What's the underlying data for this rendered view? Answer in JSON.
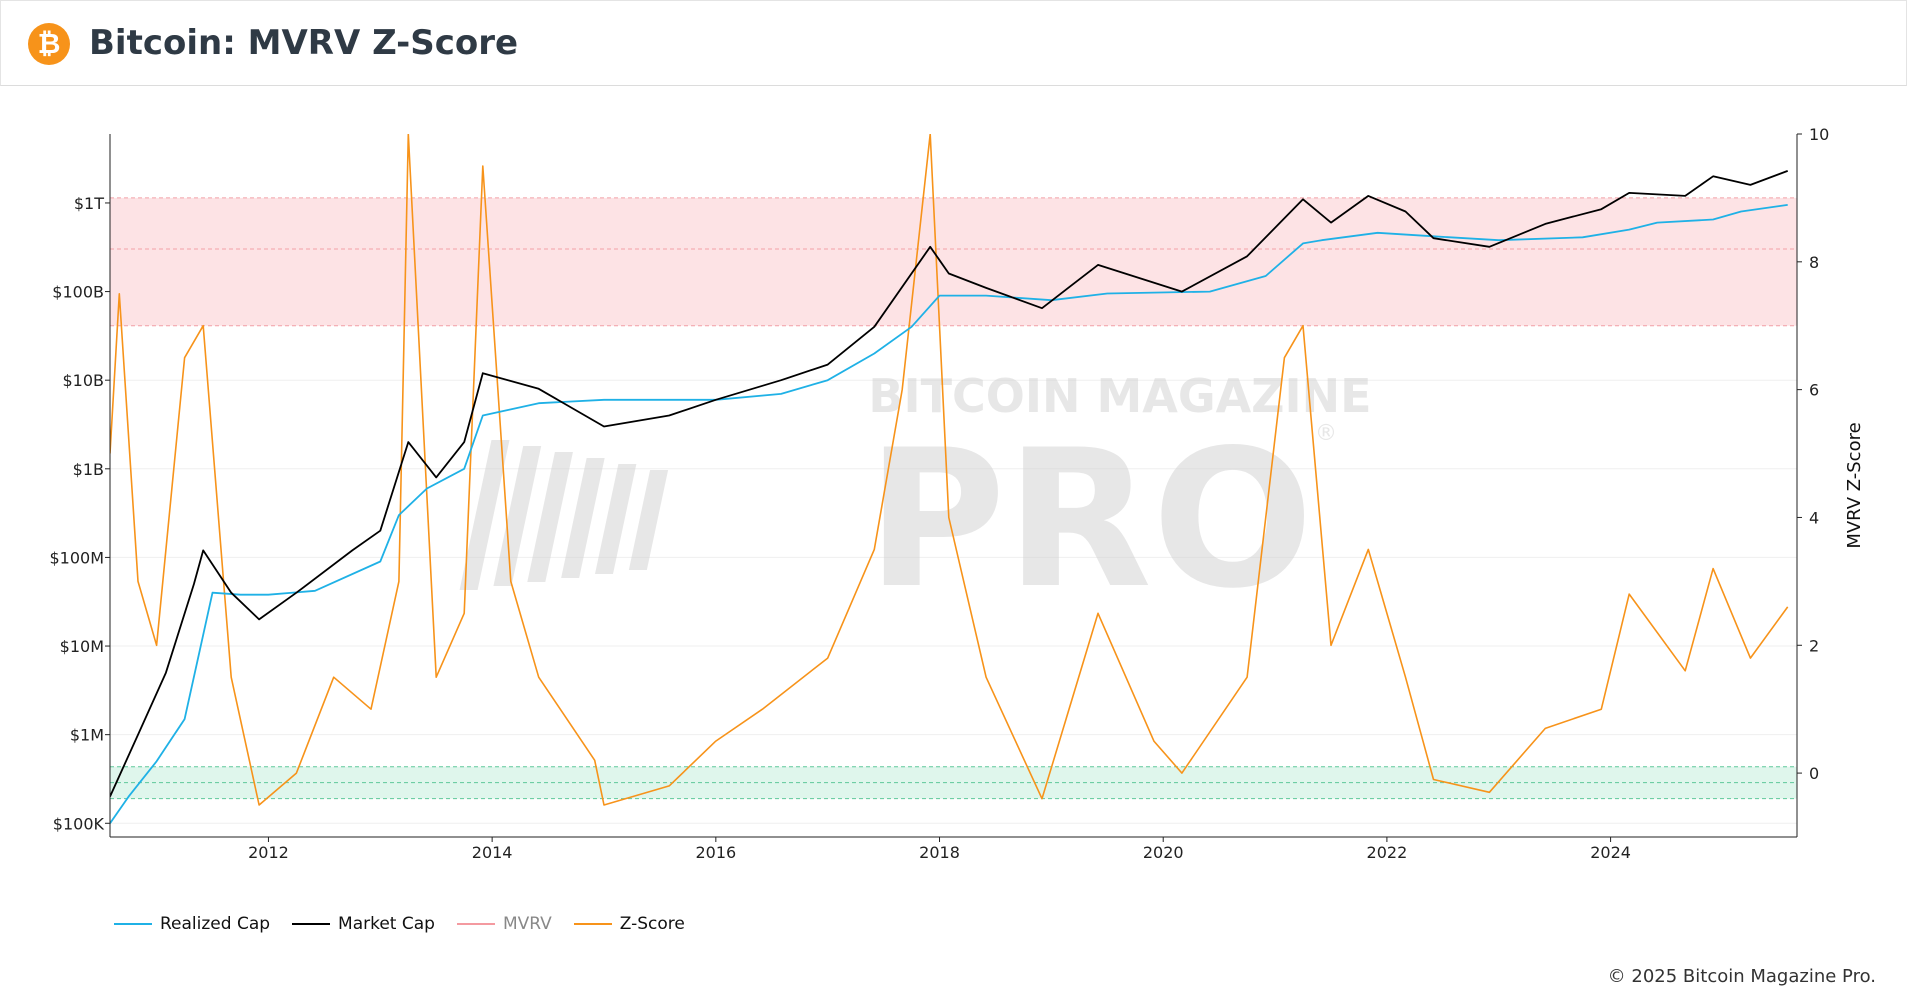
{
  "header": {
    "logo_glyph": "₿",
    "title": "Bitcoin: MVRV Z-Score"
  },
  "watermark": {
    "top_text": "BITCOIN MAGAZINE",
    "main_text": "PRO",
    "registered": "®"
  },
  "legend": [
    {
      "label": "Realized Cap",
      "color": "#1fb1e6",
      "muted": false
    },
    {
      "label": "Market Cap",
      "color": "#000000",
      "muted": false
    },
    {
      "label": "MVRV",
      "color": "#f49aa0",
      "muted": true
    },
    {
      "label": "Z-Score",
      "color": "#f7931a",
      "muted": false
    }
  ],
  "copyright": "© 2025 Bitcoin Magazine Pro.",
  "chart_data": {
    "type": "line",
    "x_range": [
      "2010-08",
      "2025-09"
    ],
    "x_ticks": [
      "2012",
      "2014",
      "2016",
      "2018",
      "2020",
      "2022",
      "2024"
    ],
    "y_left": {
      "scale": "log",
      "ticks": [
        "$100K",
        "$1M",
        "$10M",
        "$100M",
        "$1B",
        "$10B",
        "$100B",
        "$1T"
      ],
      "range_usd": [
        70000,
        6000000000000
      ]
    },
    "y_right": {
      "label": "MVRV Z-Score",
      "ticks": [
        "0",
        "2",
        "4",
        "6",
        "8",
        "10"
      ],
      "range": [
        -1,
        10
      ]
    },
    "zones": {
      "overvalued_z": [
        7,
        9
      ],
      "undervalued_z": [
        -0.4,
        0.1
      ],
      "overvalued_color": "#fde3e5",
      "undervalued_color": "#dff6ec"
    },
    "series": [
      {
        "name": "Realized Cap",
        "color": "#1fb1e6",
        "points": [
          [
            "2010-08",
            100000.0
          ],
          [
            "2010-10",
            200000.0
          ],
          [
            "2011-01",
            500000.0
          ],
          [
            "2011-04",
            1500000.0
          ],
          [
            "2011-07",
            40000000.0
          ],
          [
            "2011-10",
            38000000.0
          ],
          [
            "2012-01",
            38000000.0
          ],
          [
            "2012-06",
            42000000.0
          ],
          [
            "2013-01",
            90000000.0
          ],
          [
            "2013-03",
            300000000.0
          ],
          [
            "2013-06",
            600000000.0
          ],
          [
            "2013-10",
            1000000000.0
          ],
          [
            "2013-12",
            4000000000.0
          ],
          [
            "2014-06",
            5500000000.0
          ],
          [
            "2015-01",
            6000000000.0
          ],
          [
            "2016-01",
            6000000000.0
          ],
          [
            "2016-08",
            7000000000.0
          ],
          [
            "2017-01",
            10000000000.0
          ],
          [
            "2017-06",
            20000000000.0
          ],
          [
            "2017-10",
            40000000000.0
          ],
          [
            "2018-01",
            90000000000.0
          ],
          [
            "2018-06",
            90000000000.0
          ],
          [
            "2019-01",
            80000000000.0
          ],
          [
            "2019-07",
            95000000000.0
          ],
          [
            "2020-06",
            100000000000.0
          ],
          [
            "2020-12",
            150000000000.0
          ],
          [
            "2021-04",
            350000000000.0
          ],
          [
            "2021-06",
            380000000000.0
          ],
          [
            "2021-12",
            460000000000.0
          ],
          [
            "2022-06",
            420000000000.0
          ],
          [
            "2023-01",
            380000000000.0
          ],
          [
            "2023-10",
            410000000000.0
          ],
          [
            "2024-03",
            500000000000.0
          ],
          [
            "2024-06",
            600000000000.0
          ],
          [
            "2024-12",
            650000000000.0
          ],
          [
            "2025-03",
            800000000000.0
          ],
          [
            "2025-08",
            950000000000.0
          ]
        ]
      },
      {
        "name": "Market Cap",
        "color": "#000000",
        "points": [
          [
            "2010-08",
            200000.0
          ],
          [
            "2010-11",
            1000000.0
          ],
          [
            "2011-02",
            5000000.0
          ],
          [
            "2011-05",
            50000000.0
          ],
          [
            "2011-06",
            120000000.0
          ],
          [
            "2011-09",
            40000000.0
          ],
          [
            "2011-12",
            20000000.0
          ],
          [
            "2012-04",
            40000000.0
          ],
          [
            "2012-10",
            120000000.0
          ],
          [
            "2013-01",
            200000000.0
          ],
          [
            "2013-04",
            2000000000.0
          ],
          [
            "2013-07",
            800000000.0
          ],
          [
            "2013-10",
            2000000000.0
          ],
          [
            "2013-12",
            12000000000.0
          ],
          [
            "2014-06",
            8000000000.0
          ],
          [
            "2015-01",
            3000000000.0
          ],
          [
            "2015-08",
            4000000000.0
          ],
          [
            "2016-01",
            6000000000.0
          ],
          [
            "2016-08",
            10000000000.0
          ],
          [
            "2017-01",
            15000000000.0
          ],
          [
            "2017-06",
            40000000000.0
          ],
          [
            "2017-12",
            320000000000.0
          ],
          [
            "2018-02",
            160000000000.0
          ],
          [
            "2018-06",
            110000000000.0
          ],
          [
            "2018-12",
            65000000000.0
          ],
          [
            "2019-06",
            200000000000.0
          ],
          [
            "2020-03",
            100000000000.0
          ],
          [
            "2020-10",
            250000000000.0
          ],
          [
            "2021-04",
            1100000000000.0
          ],
          [
            "2021-07",
            600000000000.0
          ],
          [
            "2021-11",
            1200000000000.0
          ],
          [
            "2022-03",
            800000000000.0
          ],
          [
            "2022-06",
            400000000000.0
          ],
          [
            "2022-12",
            320000000000.0
          ],
          [
            "2023-06",
            580000000000.0
          ],
          [
            "2023-12",
            850000000000.0
          ],
          [
            "2024-03",
            1300000000000.0
          ],
          [
            "2024-09",
            1200000000000.0
          ],
          [
            "2024-12",
            2000000000000.0
          ],
          [
            "2025-04",
            1600000000000.0
          ],
          [
            "2025-08",
            2300000000000.0
          ]
        ]
      },
      {
        "name": "Z-Score",
        "color": "#f7931a",
        "points": [
          [
            "2010-08",
            5.0
          ],
          [
            "2010-09",
            7.5
          ],
          [
            "2010-11",
            3.0
          ],
          [
            "2011-01",
            2.0
          ],
          [
            "2011-04",
            6.5
          ],
          [
            "2011-06",
            7.0
          ],
          [
            "2011-09",
            1.5
          ],
          [
            "2011-12",
            -0.5
          ],
          [
            "2012-04",
            0.0
          ],
          [
            "2012-08",
            1.5
          ],
          [
            "2012-12",
            1.0
          ],
          [
            "2013-03",
            3.0
          ],
          [
            "2013-04",
            10.0
          ],
          [
            "2013-07",
            1.5
          ],
          [
            "2013-10",
            2.5
          ],
          [
            "2013-12",
            9.5
          ],
          [
            "2014-03",
            3.0
          ],
          [
            "2014-06",
            1.5
          ],
          [
            "2014-12",
            0.2
          ],
          [
            "2015-01",
            -0.5
          ],
          [
            "2015-08",
            -0.2
          ],
          [
            "2016-01",
            0.5
          ],
          [
            "2016-06",
            1.0
          ],
          [
            "2017-01",
            1.8
          ],
          [
            "2017-06",
            3.5
          ],
          [
            "2017-09",
            6.0
          ],
          [
            "2017-12",
            10.0
          ],
          [
            "2018-02",
            4.0
          ],
          [
            "2018-06",
            1.5
          ],
          [
            "2018-12",
            -0.4
          ],
          [
            "2019-06",
            2.5
          ],
          [
            "2019-12",
            0.5
          ],
          [
            "2020-03",
            0.0
          ],
          [
            "2020-10",
            1.5
          ],
          [
            "2021-02",
            6.5
          ],
          [
            "2021-04",
            7.0
          ],
          [
            "2021-07",
            2.0
          ],
          [
            "2021-11",
            3.5
          ],
          [
            "2022-03",
            1.5
          ],
          [
            "2022-06",
            -0.1
          ],
          [
            "2022-12",
            -0.3
          ],
          [
            "2023-06",
            0.7
          ],
          [
            "2023-12",
            1.0
          ],
          [
            "2024-03",
            2.8
          ],
          [
            "2024-09",
            1.6
          ],
          [
            "2024-12",
            3.2
          ],
          [
            "2025-04",
            1.8
          ],
          [
            "2025-08",
            2.6
          ]
        ]
      }
    ]
  }
}
